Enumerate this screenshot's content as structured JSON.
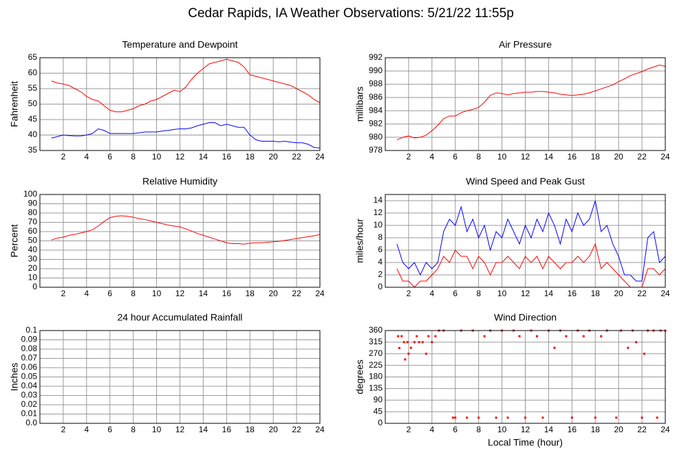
{
  "title": "Cedar Rapids, IA Weather Observations: 5/21/22 11:55p",
  "chart_data": [
    {
      "type": "line",
      "title": "Temperature and Dewpoint",
      "ylabel": "Fahrenheit",
      "x": [
        1,
        1.5,
        2,
        2.5,
        3,
        3.5,
        4,
        4.5,
        5,
        5.5,
        6,
        6.5,
        7,
        7.5,
        8,
        8.5,
        9,
        9.5,
        10,
        10.5,
        11,
        11.5,
        12,
        12.5,
        13,
        13.5,
        14,
        14.5,
        15,
        15.5,
        16,
        16.5,
        17,
        17.5,
        18,
        18.5,
        19,
        19.5,
        20,
        20.5,
        21,
        21.5,
        22,
        22.5,
        23,
        23.5,
        24
      ],
      "series": [
        {
          "color": "#ff0000",
          "values": [
            57.5,
            56.8,
            56.5,
            56,
            55,
            54,
            52.5,
            51.5,
            51,
            49.5,
            48,
            47.5,
            47.5,
            48,
            48.5,
            49.5,
            50,
            51,
            51.5,
            52.5,
            53.5,
            54.5,
            54,
            55.5,
            58,
            60,
            61.5,
            63,
            63.5,
            64,
            64.5,
            64,
            63.5,
            62,
            59.5,
            59,
            58.5,
            58,
            57.5,
            57,
            56.5,
            56,
            55,
            54,
            53,
            51.5,
            50.5
          ]
        },
        {
          "color": "#0000ff",
          "values": [
            39,
            39.5,
            40,
            39.8,
            39.7,
            39.7,
            40,
            40.5,
            42,
            41.5,
            40.5,
            40.5,
            40.5,
            40.5,
            40.5,
            40.7,
            41,
            41,
            41,
            41.3,
            41.5,
            41.8,
            42,
            42,
            42.3,
            43,
            43.5,
            44,
            44,
            43,
            43.5,
            43,
            42.5,
            42.5,
            40,
            38.5,
            38,
            38,
            38,
            37.8,
            38,
            37.7,
            37.5,
            37.5,
            37,
            36,
            35.8
          ]
        }
      ],
      "xlim": [
        0,
        24
      ],
      "xticks": [
        2,
        4,
        6,
        8,
        10,
        12,
        14,
        16,
        18,
        20,
        22,
        24
      ],
      "ylim": [
        35,
        65
      ],
      "yticks": [
        35,
        40,
        45,
        50,
        55,
        60,
        65
      ],
      "grid": true
    },
    {
      "type": "line",
      "title": "Air Pressure",
      "ylabel": "millibars",
      "x": [
        1,
        1.5,
        2,
        2.5,
        3,
        3.5,
        4,
        4.5,
        5,
        5.5,
        6,
        6.5,
        7,
        7.5,
        8,
        8.5,
        9,
        9.5,
        10,
        10.5,
        11,
        11.5,
        12,
        12.5,
        13,
        13.5,
        14,
        14.5,
        15,
        15.5,
        16,
        16.5,
        17,
        17.5,
        18,
        18.5,
        19,
        19.5,
        20,
        20.5,
        21,
        21.5,
        22,
        22.5,
        23,
        23.5,
        24
      ],
      "series": [
        {
          "color": "#ff0000",
          "values": [
            979.6,
            980,
            980.2,
            979.9,
            980,
            980.3,
            981,
            981.8,
            982.8,
            983.2,
            983.2,
            983.7,
            984,
            984.2,
            984.5,
            985.3,
            986.3,
            986.7,
            986.6,
            986.4,
            986.6,
            986.7,
            986.8,
            986.8,
            986.9,
            986.9,
            986.8,
            986.7,
            986.5,
            986.4,
            986.3,
            986.4,
            986.5,
            986.7,
            987,
            987.3,
            987.6,
            987.9,
            988.4,
            988.8,
            989.3,
            989.6,
            989.9,
            990.3,
            990.6,
            990.9,
            990.7
          ]
        }
      ],
      "xlim": [
        0,
        24
      ],
      "xticks": [
        2,
        4,
        6,
        8,
        10,
        12,
        14,
        16,
        18,
        20,
        22,
        24
      ],
      "ylim": [
        978,
        992
      ],
      "yticks": [
        978,
        980,
        982,
        984,
        986,
        988,
        990,
        992
      ],
      "grid": true
    },
    {
      "type": "line",
      "title": "Relative Humidity",
      "ylabel": "Percent",
      "x": [
        1,
        1.5,
        2,
        2.5,
        3,
        3.5,
        4,
        4.5,
        5,
        5.5,
        6,
        6.5,
        7,
        7.5,
        8,
        8.5,
        9,
        9.5,
        10,
        10.5,
        11,
        11.5,
        12,
        12.5,
        13,
        13.5,
        14,
        14.5,
        15,
        15.5,
        16,
        16.5,
        17,
        17.5,
        18,
        18.5,
        19,
        19.5,
        20,
        20.5,
        21,
        21.5,
        22,
        22.5,
        23,
        23.5,
        24
      ],
      "series": [
        {
          "color": "#ff0000",
          "values": [
            51,
            53,
            54,
            56,
            57,
            58.5,
            60,
            62,
            66,
            71,
            75,
            76.5,
            77,
            76.5,
            75.5,
            74,
            73,
            71.5,
            70,
            68.5,
            67,
            66,
            65,
            63,
            60.5,
            58,
            56,
            54,
            52,
            50,
            48,
            47,
            47,
            46.5,
            47.5,
            48,
            48,
            48.5,
            49,
            49.5,
            50.5,
            51.5,
            52.5,
            53.5,
            54.5,
            55.5,
            57
          ]
        }
      ],
      "xlim": [
        0,
        24
      ],
      "xticks": [
        2,
        4,
        6,
        8,
        10,
        12,
        14,
        16,
        18,
        20,
        22,
        24
      ],
      "ylim": [
        0,
        100
      ],
      "yticks": [
        0,
        10,
        20,
        30,
        40,
        50,
        60,
        70,
        80,
        90,
        100
      ],
      "grid": true
    },
    {
      "type": "line",
      "title": "Wind Speed and Peak Gust",
      "ylabel": "miles/hour",
      "x": [
        1,
        1.5,
        2,
        2.5,
        3,
        3.5,
        4,
        4.5,
        5,
        5.5,
        6,
        6.5,
        7,
        7.5,
        8,
        8.5,
        9,
        9.5,
        10,
        10.5,
        11,
        11.5,
        12,
        12.5,
        13,
        13.5,
        14,
        14.5,
        15,
        15.5,
        16,
        16.5,
        17,
        17.5,
        18,
        18.5,
        19,
        19.5,
        20,
        20.5,
        21,
        21.5,
        22,
        22.5,
        23,
        23.5,
        24
      ],
      "series": [
        {
          "color": "#0000ff",
          "values": [
            7,
            4,
            3,
            4,
            2,
            4,
            3,
            4,
            9,
            11,
            10,
            13,
            9,
            11,
            8,
            10,
            6,
            9,
            8,
            11,
            9,
            7,
            10,
            8,
            11,
            9,
            12,
            10,
            7,
            11,
            9,
            12,
            10,
            11,
            14,
            9,
            10,
            7,
            5,
            2,
            2,
            1,
            1,
            8,
            9,
            4,
            5
          ]
        },
        {
          "color": "#ff0000",
          "values": [
            3,
            1,
            1,
            0,
            1,
            1,
            2,
            3,
            5,
            4,
            6,
            5,
            5,
            3,
            5,
            4,
            2,
            4,
            4,
            5,
            4,
            3,
            5,
            4,
            5,
            3,
            5,
            4,
            3,
            4,
            4,
            5,
            4,
            5,
            7,
            3,
            4,
            3,
            2,
            1,
            0,
            0,
            0,
            3,
            3,
            2,
            3
          ]
        }
      ],
      "xlim": [
        0,
        24
      ],
      "xticks": [
        2,
        4,
        6,
        8,
        10,
        12,
        14,
        16,
        18,
        20,
        22,
        24
      ],
      "ylim": [
        0,
        15
      ],
      "yticks": [
        0,
        2,
        4,
        6,
        8,
        10,
        12,
        14
      ],
      "grid": true
    },
    {
      "type": "line",
      "title": "24 hour Accumulated Rainfall",
      "ylabel": "Inches",
      "x": [
        1,
        24
      ],
      "series": [
        {
          "color": "#ff0000",
          "values": [
            0,
            0
          ]
        }
      ],
      "xlim": [
        0,
        24
      ],
      "xticks": [
        2,
        4,
        6,
        8,
        10,
        12,
        14,
        16,
        18,
        20,
        22,
        24
      ],
      "ylim": [
        0,
        0.1
      ],
      "yticks": [
        {
          "value": 0,
          "label": "0.0"
        },
        0.01,
        0.02,
        0.03,
        0.04,
        0.05,
        0.06,
        0.07,
        0.08,
        0.09,
        0.1
      ],
      "grid": true
    },
    {
      "type": "scatter",
      "title": "Wind Direction",
      "ylabel": "degrees",
      "xlabel": "Local Time (hour)",
      "x": [
        1.1,
        1.2,
        1.4,
        1.6,
        1.7,
        1.9,
        2,
        2.2,
        2.5,
        2.7,
        2.9,
        3.2,
        3.5,
        3.7,
        4,
        4.3,
        4.6,
        5,
        5.8,
        6,
        6.5,
        7,
        7.5,
        8,
        8.5,
        9,
        9.5,
        10,
        10.5,
        11,
        11.5,
        12,
        12.5,
        13,
        13.5,
        14,
        14.5,
        15,
        15.5,
        16,
        16.5,
        17,
        17.5,
        18,
        18.5,
        19,
        19.8,
        20.2,
        20.8,
        21.2,
        21.5,
        22,
        22.2,
        22.5,
        23,
        23.3,
        23.6,
        24
      ],
      "series": [
        {
          "color": "#ff0000",
          "values": [
            338,
            292,
            338,
            315,
            248,
            315,
            270,
            293,
            315,
            338,
            315,
            315,
            270,
            338,
            315,
            338,
            360,
            360,
            22,
            22,
            360,
            22,
            360,
            22,
            338,
            360,
            22,
            360,
            22,
            360,
            338,
            22,
            360,
            338,
            22,
            360,
            293,
            360,
            338,
            22,
            360,
            338,
            360,
            22,
            338,
            360,
            22,
            360,
            293,
            360,
            315,
            22,
            270,
            360,
            360,
            22,
            360,
            360
          ]
        }
      ],
      "xlim": [
        0,
        24
      ],
      "xticks": [
        2,
        4,
        6,
        8,
        10,
        12,
        14,
        16,
        18,
        20,
        22,
        24
      ],
      "ylim": [
        0,
        360
      ],
      "yticks": [
        0,
        45,
        90,
        135,
        180,
        225,
        270,
        315,
        360
      ],
      "grid": true
    }
  ]
}
